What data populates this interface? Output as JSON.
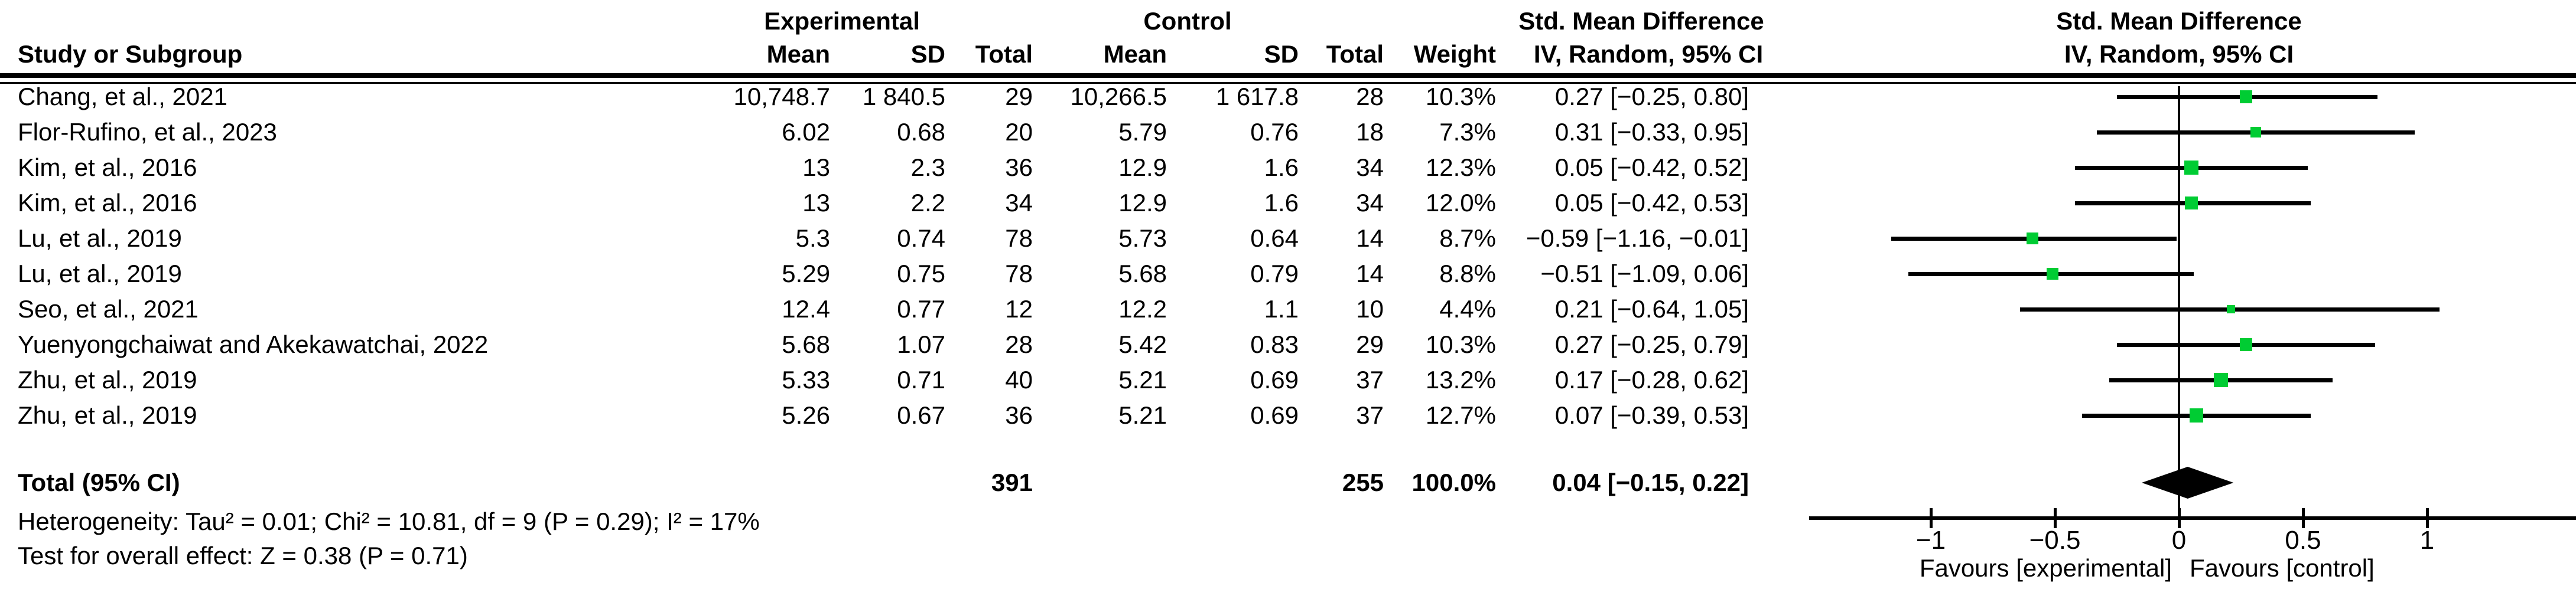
{
  "title_row": {
    "experimental": "Experimental",
    "control": "Control",
    "smd_text_col": "Std. Mean Difference",
    "smd_plot_col": "Std. Mean Difference"
  },
  "header_row": {
    "study": "Study or Subgroup",
    "exp_mean": "Mean",
    "exp_sd": "SD",
    "exp_total": "Total",
    "ctrl_mean": "Mean",
    "ctrl_sd": "SD",
    "ctrl_total": "Total",
    "weight": "Weight",
    "ci_text_col": "IV, Random, 95% CI",
    "ci_plot_col": "IV, Random, 95% CI"
  },
  "rows": [
    {
      "study": "Chang, et al., 2021",
      "exp_mean": "10,748.7",
      "exp_sd": "1 840.5",
      "exp_total": "29",
      "ctrl_mean": "10,266.5",
      "ctrl_sd": "1 617.8",
      "ctrl_total": "28",
      "weight": "10.3%",
      "ci": "0.27 [−0.25, 0.80]"
    },
    {
      "study": "Flor-Rufino, et al., 2023",
      "exp_mean": "6.02",
      "exp_sd": "0.68",
      "exp_total": "20",
      "ctrl_mean": "5.79",
      "ctrl_sd": "0.76",
      "ctrl_total": "18",
      "weight": "7.3%",
      "ci": "0.31 [−0.33, 0.95]"
    },
    {
      "study": "Kim, et al., 2016",
      "exp_mean": "13",
      "exp_sd": "2.3",
      "exp_total": "36",
      "ctrl_mean": "12.9",
      "ctrl_sd": "1.6",
      "ctrl_total": "34",
      "weight": "12.3%",
      "ci": "0.05 [−0.42, 0.52]"
    },
    {
      "study": "Kim, et al., 2016",
      "exp_mean": "13",
      "exp_sd": "2.2",
      "exp_total": "34",
      "ctrl_mean": "12.9",
      "ctrl_sd": "1.6",
      "ctrl_total": "34",
      "weight": "12.0%",
      "ci": "0.05 [−0.42, 0.53]"
    },
    {
      "study": "Lu, et al., 2019",
      "exp_mean": "5.3",
      "exp_sd": "0.74",
      "exp_total": "78",
      "ctrl_mean": "5.73",
      "ctrl_sd": "0.64",
      "ctrl_total": "14",
      "weight": "8.7%",
      "ci": "−0.59 [−1.16, −0.01]"
    },
    {
      "study": "Lu, et al., 2019",
      "exp_mean": "5.29",
      "exp_sd": "0.75",
      "exp_total": "78",
      "ctrl_mean": "5.68",
      "ctrl_sd": "0.79",
      "ctrl_total": "14",
      "weight": "8.8%",
      "ci": "−0.51 [−1.09, 0.06]"
    },
    {
      "study": "Seo, et al., 2021",
      "exp_mean": "12.4",
      "exp_sd": "0.77",
      "exp_total": "12",
      "ctrl_mean": "12.2",
      "ctrl_sd": "1.1",
      "ctrl_total": "10",
      "weight": "4.4%",
      "ci": "0.21 [−0.64, 1.05]"
    },
    {
      "study": "Yuenyongchaiwat and Akekawatchai, 2022",
      "exp_mean": "5.68",
      "exp_sd": "1.07",
      "exp_total": "28",
      "ctrl_mean": "5.42",
      "ctrl_sd": "0.83",
      "ctrl_total": "29",
      "weight": "10.3%",
      "ci": "0.27 [−0.25, 0.79]"
    },
    {
      "study": "Zhu, et al., 2019",
      "exp_mean": "5.33",
      "exp_sd": "0.71",
      "exp_total": "40",
      "ctrl_mean": "5.21",
      "ctrl_sd": "0.69",
      "ctrl_total": "37",
      "weight": "13.2%",
      "ci": "0.17 [−0.28, 0.62]"
    },
    {
      "study": "Zhu, et al., 2019",
      "exp_mean": "5.26",
      "exp_sd": "0.67",
      "exp_total": "36",
      "ctrl_mean": "5.21",
      "ctrl_sd": "0.69",
      "ctrl_total": "37",
      "weight": "12.7%",
      "ci": "0.07 [−0.39, 0.53]"
    }
  ],
  "total_row": {
    "label": "Total (95% CI)",
    "exp_total": "391",
    "ctrl_total": "255",
    "weight": "100.0%",
    "ci": "0.04 [−0.15, 0.22]"
  },
  "footnotes": {
    "heterogeneity": "Heterogeneity: Tau² = 0.01; Chi² = 10.81, df = 9 (P = 0.29); I² = 17%",
    "overall_effect": "Test for overall effect: Z = 0.38 (P = 0.71)"
  },
  "chart_data": {
    "type": "forest",
    "title": "Std. Mean Difference",
    "method": "IV, Random, 95% CI",
    "x_tick_values": [
      -1,
      -0.5,
      0,
      0.5,
      1
    ],
    "x_tick_labels": [
      "−1",
      "−0.5",
      "0",
      "0.5",
      "1"
    ],
    "x_axis_range": [
      -1.49,
      1.6
    ],
    "favours_left": "Favours [experimental]",
    "favours_right": "Favours [control]",
    "marker_color": "#00CC33",
    "studies": [
      {
        "label": "Chang, et al., 2021",
        "est": 0.27,
        "lo": -0.25,
        "hi": 0.8,
        "weight_pct": 10.3
      },
      {
        "label": "Flor-Rufino, et al., 2023",
        "est": 0.31,
        "lo": -0.33,
        "hi": 0.95,
        "weight_pct": 7.3
      },
      {
        "label": "Kim, et al., 2016",
        "est": 0.05,
        "lo": -0.42,
        "hi": 0.52,
        "weight_pct": 12.3
      },
      {
        "label": "Kim, et al., 2016",
        "est": 0.05,
        "lo": -0.42,
        "hi": 0.53,
        "weight_pct": 12.0
      },
      {
        "label": "Lu, et al., 2019",
        "est": -0.59,
        "lo": -1.16,
        "hi": -0.01,
        "weight_pct": 8.7
      },
      {
        "label": "Lu, et al., 2019",
        "est": -0.51,
        "lo": -1.09,
        "hi": 0.06,
        "weight_pct": 8.8
      },
      {
        "label": "Seo, et al., 2021",
        "est": 0.21,
        "lo": -0.64,
        "hi": 1.05,
        "weight_pct": 4.4
      },
      {
        "label": "Yuenyongchaiwat and Akekawatchai, 2022",
        "est": 0.27,
        "lo": -0.25,
        "hi": 0.79,
        "weight_pct": 10.3
      },
      {
        "label": "Zhu, et al., 2019",
        "est": 0.17,
        "lo": -0.28,
        "hi": 0.62,
        "weight_pct": 13.2
      },
      {
        "label": "Zhu, et al., 2019",
        "est": 0.07,
        "lo": -0.39,
        "hi": 0.53,
        "weight_pct": 12.7
      }
    ],
    "overall": {
      "est": 0.04,
      "lo": -0.15,
      "hi": 0.22
    }
  }
}
